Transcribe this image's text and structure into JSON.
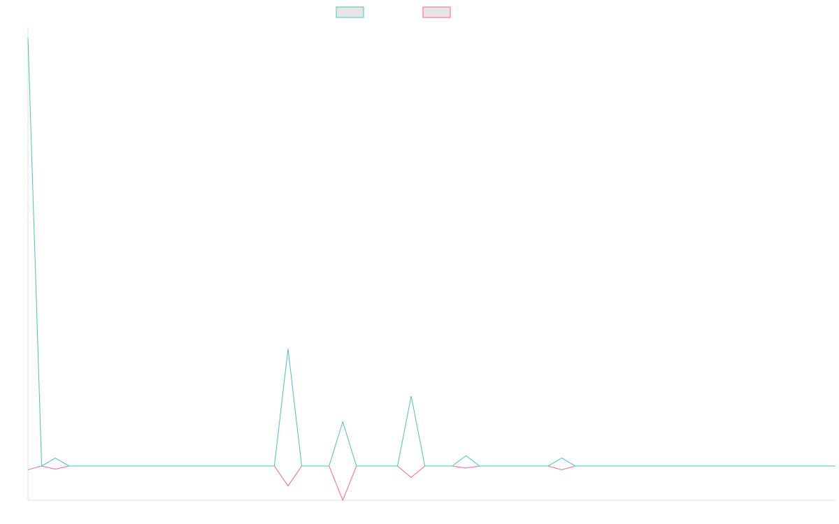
{
  "chart_data": {
    "type": "line",
    "title": "",
    "xlabel": "",
    "ylabel": "",
    "grid": false,
    "legend_position": "top-center",
    "x": [
      0,
      1,
      2,
      3,
      4,
      5,
      6,
      7,
      8,
      9,
      10,
      11,
      12,
      13,
      14,
      15,
      16,
      17,
      18,
      19,
      20,
      21,
      22,
      23,
      24,
      25,
      26,
      27,
      28,
      29,
      30,
      31,
      32,
      33,
      34,
      35,
      36,
      37,
      38,
      39,
      40,
      41,
      42,
      43,
      44,
      45,
      46,
      47,
      48,
      49,
      50,
      51,
      52,
      53,
      54,
      55,
      56,
      57,
      58,
      59
    ],
    "xlim": [
      0,
      59
    ],
    "ylim": [
      -12,
      154
    ],
    "series": [
      {
        "name": "",
        "color": "#4bc0c0",
        "fill": "#e6e6e6",
        "values": [
          150,
          0,
          2.8,
          0,
          0,
          0,
          0,
          0,
          0,
          0,
          0,
          0,
          0,
          0,
          0,
          0,
          0,
          0,
          0,
          41,
          0,
          0,
          0,
          15.5,
          0,
          0,
          0,
          0,
          24.5,
          0,
          0,
          0,
          3.6,
          0,
          0,
          0,
          0,
          0,
          0,
          2.8,
          0,
          0,
          0,
          0,
          0,
          0,
          0,
          0,
          0,
          0,
          0,
          0,
          0,
          0,
          0,
          0,
          0,
          0,
          0,
          0
        ]
      },
      {
        "name": "",
        "color": "#ff6384",
        "fill": "#e6e6e6",
        "values": [
          -1.3,
          0,
          -1.1,
          0,
          0,
          0,
          0,
          0,
          0,
          0,
          0,
          0,
          0,
          0,
          0,
          0,
          0,
          0,
          0,
          -7,
          0,
          0,
          0,
          -12,
          0,
          0,
          0,
          0,
          -4,
          0,
          0,
          0,
          -0.7,
          0,
          0,
          0,
          0,
          0,
          0,
          -1.3,
          0,
          0,
          0,
          0,
          0,
          0,
          0,
          0,
          0,
          0,
          0,
          0,
          0,
          0,
          0,
          0,
          0,
          0,
          0,
          0
        ]
      }
    ]
  }
}
